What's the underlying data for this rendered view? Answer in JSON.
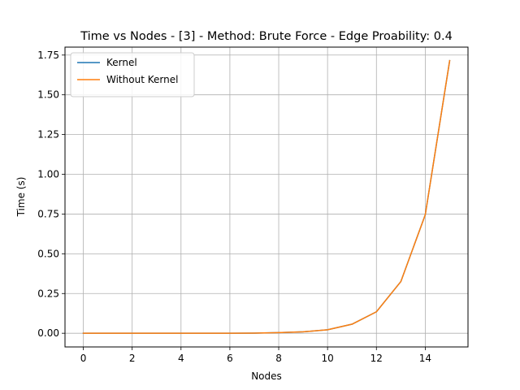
{
  "chart_data": {
    "type": "line",
    "title": "Time vs Nodes - [3] - Method: Brute Force - Edge Proability: 0.4",
    "xlabel": "Nodes",
    "ylabel": "Time (s)",
    "xlim": [
      -0.75,
      15.75
    ],
    "ylim": [
      -0.086,
      1.8
    ],
    "xticks": [
      0,
      2,
      4,
      6,
      8,
      10,
      12,
      14
    ],
    "yticks": [
      0.0,
      0.25,
      0.5,
      0.75,
      1.0,
      1.25,
      1.5,
      1.75
    ],
    "xtick_labels": [
      "0",
      "2",
      "4",
      "6",
      "8",
      "10",
      "12",
      "14"
    ],
    "ytick_labels": [
      "0.00",
      "0.25",
      "0.50",
      "0.75",
      "1.00",
      "1.25",
      "1.50",
      "1.75"
    ],
    "grid": true,
    "legend_position": "upper-left",
    "x": [
      0,
      1,
      2,
      3,
      4,
      5,
      6,
      7,
      8,
      9,
      10,
      11,
      12,
      13,
      14,
      15
    ],
    "series": [
      {
        "name": "Kernel",
        "color": "#1f77b4",
        "values": [
          0.0,
          0.0,
          0.0,
          0.0,
          0.0,
          0.0,
          0.0005,
          0.001,
          0.004,
          0.009,
          0.022,
          0.057,
          0.135,
          0.325,
          0.745,
          1.715
        ]
      },
      {
        "name": "Without Kernel",
        "color": "#ff7f0e",
        "values": [
          0.0,
          0.0,
          0.0,
          0.0,
          0.0,
          0.0,
          0.0005,
          0.001,
          0.004,
          0.009,
          0.022,
          0.057,
          0.135,
          0.325,
          0.745,
          1.715
        ]
      }
    ]
  }
}
